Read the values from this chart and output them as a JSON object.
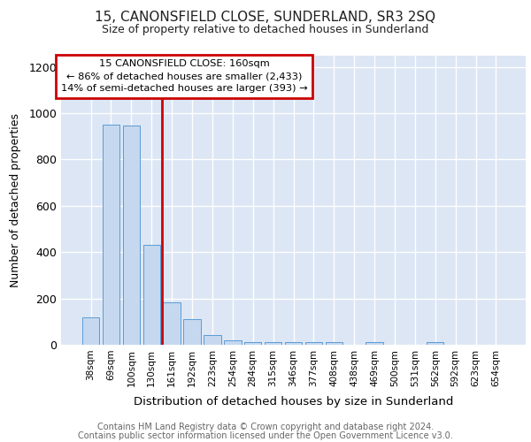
{
  "title": "15, CANONSFIELD CLOSE, SUNDERLAND, SR3 2SQ",
  "subtitle": "Size of property relative to detached houses in Sunderland",
  "xlabel": "Distribution of detached houses by size in Sunderland",
  "ylabel": "Number of detached properties",
  "footer_line1": "Contains HM Land Registry data © Crown copyright and database right 2024.",
  "footer_line2": "Contains public sector information licensed under the Open Government Licence v3.0.",
  "categories": [
    "38sqm",
    "69sqm",
    "100sqm",
    "130sqm",
    "161sqm",
    "192sqm",
    "223sqm",
    "254sqm",
    "284sqm",
    "315sqm",
    "346sqm",
    "377sqm",
    "408sqm",
    "438sqm",
    "469sqm",
    "500sqm",
    "531sqm",
    "562sqm",
    "592sqm",
    "623sqm",
    "654sqm"
  ],
  "values": [
    120,
    950,
    945,
    430,
    185,
    112,
    43,
    20,
    13,
    13,
    13,
    13,
    10,
    0,
    10,
    0,
    0,
    10,
    0,
    0,
    0
  ],
  "bar_color": "#c5d8ef",
  "bar_edge_color": "#5b9bd5",
  "background_color": "#dce6f5",
  "grid_color": "#ffffff",
  "ylim": [
    0,
    1250
  ],
  "yticks": [
    0,
    200,
    400,
    600,
    800,
    1000,
    1200
  ],
  "property_label": "15 CANONSFIELD CLOSE: 160sqm",
  "annotation_line1": "← 86% of detached houses are smaller (2,433)",
  "annotation_line2": "14% of semi-detached houses are larger (393) →",
  "annotation_box_color": "#cc0000",
  "vline_color": "#cc0000",
  "vline_index": 4
}
